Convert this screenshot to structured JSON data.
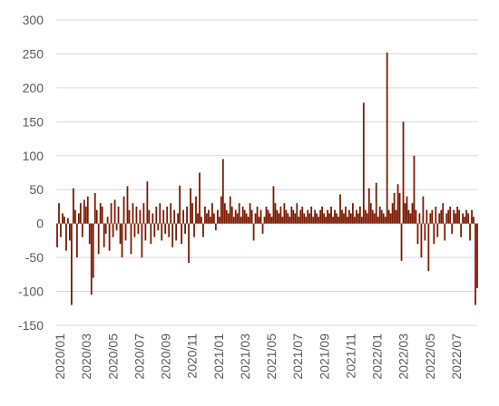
{
  "chart_data": {
    "type": "bar",
    "title": "",
    "xlabel": "",
    "ylabel": "",
    "ylim": [
      -150,
      300
    ],
    "yticks": [
      -150,
      -100,
      -50,
      0,
      50,
      100,
      150,
      200,
      250,
      300
    ],
    "y_tick_labels": [
      "-150",
      "-100",
      "-50",
      "0",
      "50",
      "100",
      "150",
      "200",
      "250",
      "300"
    ],
    "x_tick_labels": [
      "2020/01",
      "2020/03",
      "2020/05",
      "2020/07",
      "2020/09",
      "2020/11",
      "2021/01",
      "2021/03",
      "2021/05",
      "2021/07",
      "2021/09",
      "2021/11",
      "2022/01",
      "2022/03",
      "2022/05",
      "2022/07"
    ],
    "bar_color": "#7b1a02",
    "grid": true,
    "legend": "none",
    "x_start": "2020/01",
    "x_end": "2022/08",
    "values": [
      -35,
      30,
      -20,
      15,
      10,
      -40,
      8,
      -25,
      -120,
      52,
      20,
      -50,
      15,
      30,
      -20,
      35,
      25,
      40,
      -30,
      -105,
      -80,
      45,
      20,
      -45,
      30,
      25,
      -35,
      -15,
      10,
      -40,
      30,
      -20,
      35,
      -10,
      25,
      -30,
      -50,
      40,
      -25,
      55,
      20,
      -45,
      30,
      -20,
      25,
      -15,
      20,
      -50,
      30,
      -25,
      62,
      20,
      -30,
      15,
      -20,
      25,
      -10,
      30,
      -25,
      20,
      -15,
      25,
      -20,
      30,
      -35,
      20,
      -25,
      15,
      56,
      -30,
      20,
      -15,
      25,
      -58,
      52,
      30,
      -20,
      40,
      15,
      75,
      10,
      -20,
      25,
      15,
      20,
      10,
      30,
      15,
      -10,
      20,
      10,
      40,
      95,
      30,
      20,
      15,
      40,
      25,
      10,
      20,
      15,
      30,
      10,
      25,
      20,
      15,
      10,
      30,
      20,
      -25,
      15,
      25,
      10,
      20,
      -15,
      10,
      25,
      20,
      15,
      10,
      55,
      30,
      20,
      15,
      25,
      10,
      30,
      20,
      15,
      10,
      25,
      20,
      15,
      30,
      10,
      20,
      25,
      15,
      10,
      20,
      15,
      25,
      10,
      20,
      15,
      10,
      20,
      25,
      15,
      10,
      20,
      15,
      25,
      10,
      20,
      15,
      10,
      43,
      20,
      15,
      25,
      10,
      20,
      15,
      30,
      10,
      20,
      15,
      25,
      10,
      178,
      20,
      15,
      52,
      30,
      20,
      15,
      60,
      10,
      25,
      20,
      15,
      10,
      252,
      20,
      15,
      30,
      45,
      20,
      58,
      45,
      -55,
      150,
      30,
      40,
      20,
      15,
      30,
      100,
      20,
      -30,
      15,
      -50,
      40,
      -25,
      20,
      -70,
      15,
      20,
      -30,
      25,
      -20,
      15,
      20,
      30,
      -25,
      15,
      20,
      25,
      -15,
      20,
      15,
      25,
      20,
      -20,
      15,
      10,
      20,
      15,
      -25,
      20,
      10,
      -120,
      -95
    ]
  }
}
